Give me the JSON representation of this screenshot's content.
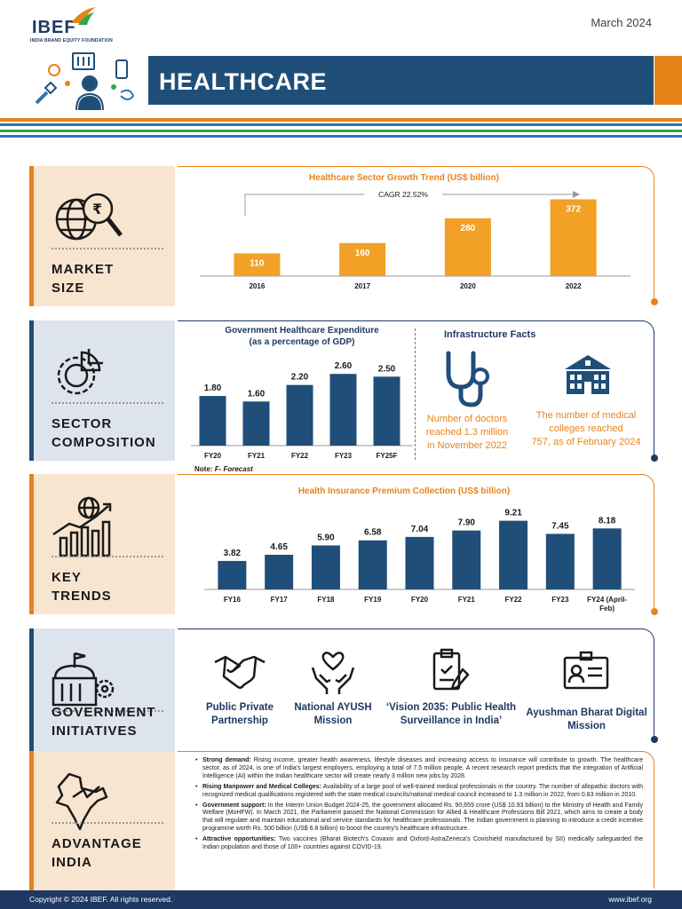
{
  "header": {
    "logo": "IBEF",
    "logo_sub": "INDIA BRAND EQUITY FOUNDATION",
    "date": "March 2024",
    "title": "HEALTHCARE"
  },
  "colors": {
    "navy": "#1f4e79",
    "dark_navy": "#1f3864",
    "orange": "#e8831a",
    "bar_orange": "#f2a126",
    "green": "#2ea84a",
    "peach": "#f8e5d0",
    "blue_grey": "#dde4ed"
  },
  "sections": {
    "market_size": {
      "label1": "MARKET",
      "label2": "SIZE"
    },
    "sector_composition": {
      "label1": "SECTOR",
      "label2": "COMPOSITION"
    },
    "key_trends": {
      "label1": "KEY",
      "label2": "TRENDS"
    },
    "government_initiatives": {
      "label1": "GOVERNMENT",
      "label2": "INITIATIVES"
    },
    "advantage_india": {
      "label1": "ADVANTAGE",
      "label2": "INDIA"
    }
  },
  "chart_data": [
    {
      "type": "bar",
      "title": "Healthcare Sector Growth Trend (US$ billion)",
      "annotation": "CAGR 22.52%",
      "categories": [
        "2016",
        "2017",
        "2020",
        "2022"
      ],
      "values": [
        110,
        160,
        280,
        372
      ],
      "ylim": [
        0,
        400
      ]
    },
    {
      "type": "bar",
      "title": "Government Healthcare Expenditure",
      "subtitle": "(as a percentage of GDP)",
      "categories": [
        "FY20",
        "FY21",
        "FY22",
        "FY23",
        "FY25F"
      ],
      "values": [
        1.8,
        1.6,
        2.2,
        2.6,
        2.5
      ],
      "value_labels": [
        "1.80",
        "1.60",
        "2.20",
        "2.60",
        "2.50"
      ],
      "note_label": "Note:",
      "note_text": "F- Forecast",
      "ylim": [
        0,
        2.8
      ]
    },
    {
      "type": "bar",
      "title": "Health Insurance Premium Collection (US$ billion)",
      "categories": [
        "FY16",
        "FY17",
        "FY18",
        "FY19",
        "FY20",
        "FY21",
        "FY22",
        "FY23",
        "FY24 (April-Feb)"
      ],
      "values": [
        3.82,
        4.65,
        5.9,
        6.58,
        7.04,
        7.9,
        9.21,
        7.45,
        8.18
      ],
      "value_labels": [
        "3.82",
        "4.65",
        "5.90",
        "6.58",
        "7.04",
        "7.90",
        "9.21",
        "7.45",
        "8.18"
      ],
      "ylim": [
        0,
        10
      ]
    }
  ],
  "infrastructure": {
    "title": "Infrastructure Facts",
    "doctors_line1": "Number of doctors",
    "doctors_line2": "reached 1.3 million",
    "doctors_line3": "in November 2022",
    "colleges_line1": "The number of medical",
    "colleges_line2": "colleges reached",
    "colleges_line3": "757, as of February 2024"
  },
  "initiatives": [
    {
      "line1": "Public Private",
      "line2": "Partnership",
      "icon": "handshake-icon"
    },
    {
      "line1": "National AYUSH",
      "line2": "Mission",
      "icon": "hands-heart-icon"
    },
    {
      "line1": "‘Vision 2035: Public Health",
      "line2": "Surveillance in India’",
      "icon": "clipboard-check-icon"
    },
    {
      "line1": "Ayushman Bharat Digital",
      "line2": "Mission",
      "icon": "id-card-icon"
    }
  ],
  "advantages": [
    {
      "title": "Strong demand:",
      "text": " Rising income, greater health awareness, lifestyle diseases and increasing access to insurance will contribute to growth. The healthcare sector, as of 2024, is one of India's largest employers, employing a total of 7.5 million people. A recent research report predicts that the integration of Artificial Intelligence (AI) within the Indian healthcare sector will create nearly 3 million new jobs by 2028."
    },
    {
      "title": "Rising Manpower and Medical Colleges:",
      "text": " Availability of a large pool of well-trained medical professionals in the country. The number of allopathic doctors with recognized medical qualifications registered with the state medical councils/national medical council increased to 1.3 million in 2022, from 0.83 million in 2010."
    },
    {
      "title": "Government support:",
      "text": " In the Interim Union Budget 2024-25, the government allocated Rs. 90,659 crore (US$ 10.93 billion) to the Ministry of Health and Family Welfare (MoHFW). In March 2021, the Parliament passed the National Commission for Allied & Healthcare Professions Bill 2021, which aims to create a body that will regulate and maintain educational and service standards for healthcare professionals. The Indian government is planning to introduce a credit incentive programme worth Rs. 500 billion (US$ 6.8 billion) to boost the country's healthcare infrastructure."
    },
    {
      "title": "Attractive opportunities:",
      "text": " Two vaccines (Bharat Biotech's Covaxin and Oxford-AstraZeneca's Covishield manufactured by SII) medically safeguarded the Indian population and those of 100+ countries against COVID-19."
    }
  ],
  "footer": {
    "copyright": "Copyright © 2024 IBEF. All rights reserved.",
    "website": "www.ibef.org"
  }
}
